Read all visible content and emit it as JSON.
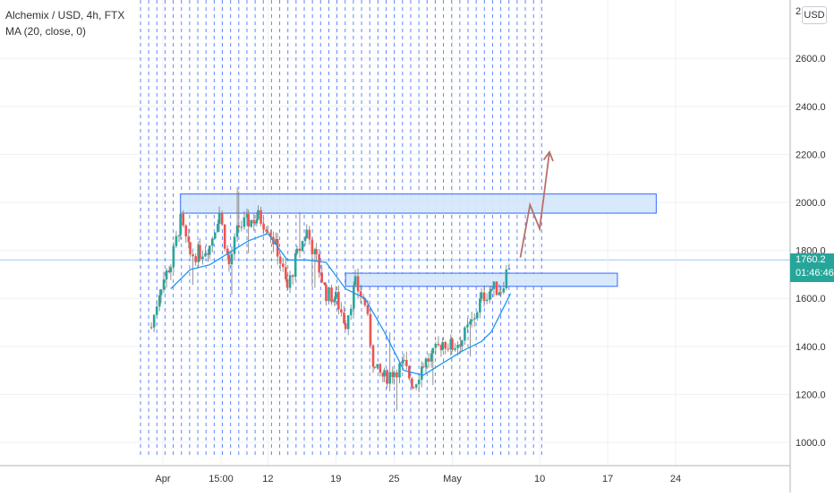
{
  "legend": {
    "title": "Alchemix / USD, 4h, FTX",
    "indicator": "MA (20, close, 0)"
  },
  "currency_button": "USD",
  "last_price_tag": {
    "price": "1760.2",
    "countdown": "01:46:46"
  },
  "colors": {
    "up": "#26a69a",
    "down": "#ef5350",
    "ma": "#2196f3",
    "zone_fill": "#d6e8fb",
    "zone_border": "#2962ff",
    "arrow": "#b7706a",
    "session_lines": "#2962ff"
  },
  "chart_data": {
    "type": "candlestick",
    "title": "Alchemix / USD, 4h, FTX",
    "indicator": "MA (20, close, 0)",
    "ylim": [
      900,
      2900
    ],
    "y_ticks": [
      "1000.0",
      "1200.0",
      "1400.0",
      "1600.0",
      "1800.0",
      "2000.0",
      "2200.0",
      "2400.0",
      "2600.0"
    ],
    "y_tick_top_partial": "2",
    "x_ticks": [
      "Apr",
      "15:00",
      "12",
      "19",
      "25",
      "May",
      "10",
      "17",
      "24"
    ],
    "last_price": 1760.2,
    "close_path": [
      {
        "x": "Mar 31",
        "y": 1480
      },
      {
        "x": "Apr 1",
        "y": 1660
      },
      {
        "x": "Apr 2",
        "y": 1740
      },
      {
        "x": "Apr 3",
        "y": 1920
      },
      {
        "x": "Apr 4",
        "y": 1780
      },
      {
        "x": "Apr 5",
        "y": 1790
      },
      {
        "x": "Apr 6",
        "y": 1820
      },
      {
        "x": "Apr 7",
        "y": 1960
      },
      {
        "x": "Apr 8",
        "y": 1740
      },
      {
        "x": "Apr 9",
        "y": 1900
      },
      {
        "x": "Apr 10",
        "y": 1920
      },
      {
        "x": "Apr 11",
        "y": 1940
      },
      {
        "x": "Apr 12",
        "y": 1900
      },
      {
        "x": "Apr 13",
        "y": 1800
      },
      {
        "x": "Apr 14",
        "y": 1640
      },
      {
        "x": "Apr 15",
        "y": 1780
      },
      {
        "x": "Apr 16",
        "y": 1880
      },
      {
        "x": "Apr 17",
        "y": 1760
      },
      {
        "x": "Apr 18",
        "y": 1620
      },
      {
        "x": "Apr 19",
        "y": 1600
      },
      {
        "x": "Apr 20",
        "y": 1500
      },
      {
        "x": "Apr 21",
        "y": 1660
      },
      {
        "x": "Apr 22",
        "y": 1580
      },
      {
        "x": "Apr 23",
        "y": 1300
      },
      {
        "x": "Apr 24",
        "y": 1270
      },
      {
        "x": "Apr 25",
        "y": 1300
      },
      {
        "x": "Apr 26",
        "y": 1320
      },
      {
        "x": "Apr 27",
        "y": 1240
      },
      {
        "x": "Apr 28",
        "y": 1330
      },
      {
        "x": "Apr 29",
        "y": 1360
      },
      {
        "x": "Apr 30",
        "y": 1420
      },
      {
        "x": "May 1",
        "y": 1400
      },
      {
        "x": "May 2",
        "y": 1430
      },
      {
        "x": "May 3",
        "y": 1500
      },
      {
        "x": "May 4",
        "y": 1600
      },
      {
        "x": "May 5",
        "y": 1640
      },
      {
        "x": "May 6",
        "y": 1640
      },
      {
        "x": "May 7",
        "y": 1760
      }
    ],
    "moving_average": [
      {
        "x": "Apr 2",
        "y": 1640
      },
      {
        "x": "Apr 4",
        "y": 1720
      },
      {
        "x": "Apr 6",
        "y": 1740
      },
      {
        "x": "Apr 8",
        "y": 1790
      },
      {
        "x": "Apr 10",
        "y": 1840
      },
      {
        "x": "Apr 12",
        "y": 1870
      },
      {
        "x": "Apr 14",
        "y": 1760
      },
      {
        "x": "Apr 16",
        "y": 1760
      },
      {
        "x": "Apr 18",
        "y": 1750
      },
      {
        "x": "Apr 20",
        "y": 1640
      },
      {
        "x": "Apr 22",
        "y": 1600
      },
      {
        "x": "Apr 24",
        "y": 1460
      },
      {
        "x": "Apr 26",
        "y": 1300
      },
      {
        "x": "Apr 28",
        "y": 1280
      },
      {
        "x": "Apr 30",
        "y": 1330
      },
      {
        "x": "May 2",
        "y": 1380
      },
      {
        "x": "May 4",
        "y": 1420
      },
      {
        "x": "May 5",
        "y": 1460
      },
      {
        "x": "May 6",
        "y": 1540
      },
      {
        "x": "May 7",
        "y": 1620
      }
    ],
    "zones": [
      {
        "from": "Apr 3",
        "to": "May 22",
        "low": 1955,
        "high": 2035
      },
      {
        "from": "Apr 20",
        "to": "May 18",
        "low": 1650,
        "high": 1705
      }
    ],
    "projection_arrow": [
      {
        "x": "May 8",
        "y": 1770
      },
      {
        "x": "May 9",
        "y": 1990
      },
      {
        "x": "May 10",
        "y": 1890
      },
      {
        "x": "May 11",
        "y": 2210
      }
    ]
  }
}
